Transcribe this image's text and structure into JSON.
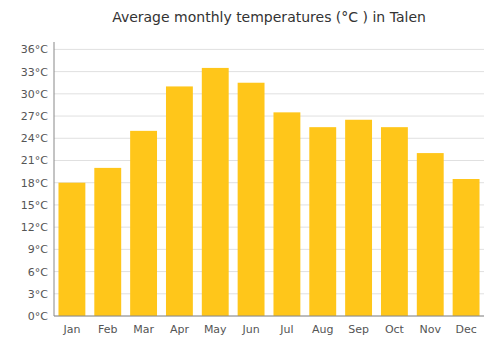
{
  "chart_data": {
    "type": "bar",
    "title": "Average monthly temperatures (°C ) in Talen",
    "categories": [
      "Jan",
      "Feb",
      "Mar",
      "Apr",
      "May",
      "Jun",
      "Jul",
      "Aug",
      "Sep",
      "Oct",
      "Nov",
      "Dec"
    ],
    "values": [
      18,
      20,
      25,
      31,
      33.5,
      31.5,
      27.5,
      25.5,
      26.5,
      25.5,
      22,
      18.5
    ],
    "color": "#FFC61A",
    "ylim": [
      0,
      37
    ],
    "yticks": [
      {
        "value": 0,
        "label": "0°C"
      },
      {
        "value": 3,
        "label": "3°C"
      },
      {
        "value": 6,
        "label": "6°C"
      },
      {
        "value": 9,
        "label": "9°C"
      },
      {
        "value": 12,
        "label": "12°C"
      },
      {
        "value": 15,
        "label": "15°C"
      },
      {
        "value": 18,
        "label": "18°C"
      },
      {
        "value": 21,
        "label": "21°C"
      },
      {
        "value": 24,
        "label": "24°C"
      },
      {
        "value": 27,
        "label": "27°C"
      },
      {
        "value": 30,
        "label": "30°C"
      },
      {
        "value": 33,
        "label": "33°C"
      },
      {
        "value": 36,
        "label": "36°C"
      }
    ],
    "grid": true
  }
}
